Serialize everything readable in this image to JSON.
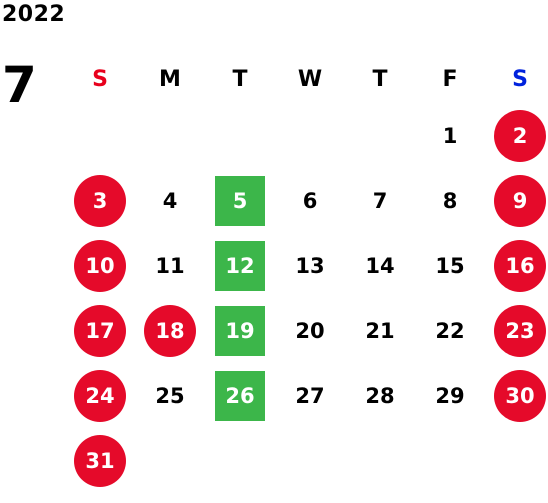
{
  "year": "2022",
  "month": "7",
  "weekdays": [
    "S",
    "M",
    "T",
    "W",
    "T",
    "F",
    "S"
  ],
  "weekday_colors": [
    "#e8001c",
    "#000000",
    "#000000",
    "#000000",
    "#000000",
    "#000000",
    "#0022dd"
  ],
  "colors": {
    "holiday": "#e50a2a",
    "highlight": "#3cb64a",
    "text": "#000000"
  },
  "weeks": [
    [
      null,
      null,
      null,
      null,
      null,
      {
        "day": "1"
      },
      {
        "day": "2",
        "mark": "holiday"
      }
    ],
    [
      {
        "day": "3",
        "mark": "holiday"
      },
      {
        "day": "4"
      },
      {
        "day": "5",
        "mark": "highlight"
      },
      {
        "day": "6"
      },
      {
        "day": "7"
      },
      {
        "day": "8"
      },
      {
        "day": "9",
        "mark": "holiday"
      }
    ],
    [
      {
        "day": "10",
        "mark": "holiday"
      },
      {
        "day": "11"
      },
      {
        "day": "12",
        "mark": "highlight"
      },
      {
        "day": "13"
      },
      {
        "day": "14"
      },
      {
        "day": "15"
      },
      {
        "day": "16",
        "mark": "holiday"
      }
    ],
    [
      {
        "day": "17",
        "mark": "holiday"
      },
      {
        "day": "18",
        "mark": "holiday"
      },
      {
        "day": "19",
        "mark": "highlight"
      },
      {
        "day": "20"
      },
      {
        "day": "21"
      },
      {
        "day": "22"
      },
      {
        "day": "23",
        "mark": "holiday"
      }
    ],
    [
      {
        "day": "24",
        "mark": "holiday"
      },
      {
        "day": "25"
      },
      {
        "day": "26",
        "mark": "highlight"
      },
      {
        "day": "27"
      },
      {
        "day": "28"
      },
      {
        "day": "29"
      },
      {
        "day": "30",
        "mark": "holiday"
      }
    ],
    [
      {
        "day": "31",
        "mark": "holiday"
      },
      null,
      null,
      null,
      null,
      null,
      null
    ]
  ]
}
